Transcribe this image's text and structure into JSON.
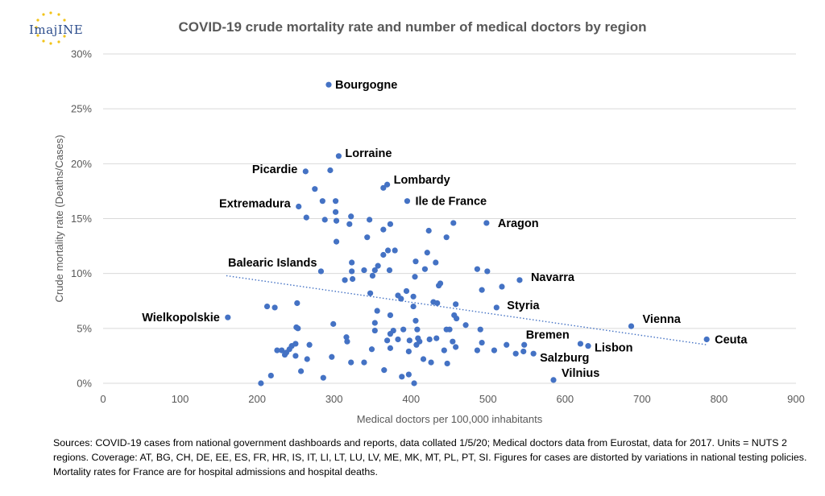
{
  "logo": {
    "text": "ImajINE"
  },
  "chart_data": {
    "type": "scatter",
    "title": "COVID-19 crude mortality rate and number of medical doctors by region",
    "xlabel": "Medical doctors per 100,000 inhabitants",
    "ylabel": "Crude mortality rate (Deaths/Cases)",
    "xlim": [
      0,
      900
    ],
    "ylim": [
      0,
      30
    ],
    "x_ticks": [
      0,
      100,
      200,
      300,
      400,
      500,
      600,
      700,
      800,
      900
    ],
    "y_ticks": [
      0,
      5,
      10,
      15,
      20,
      25,
      30
    ],
    "y_tick_labels": [
      "0%",
      "5%",
      "10%",
      "15%",
      "20%",
      "25%",
      "30%"
    ],
    "grid": "horizontal",
    "point_color": "#4472c4",
    "trendline": {
      "type": "linear",
      "style": "dotted",
      "color": "#4472c4",
      "from": [
        160,
        9.8
      ],
      "to": [
        785,
        3.5
      ]
    },
    "labeled_points": [
      {
        "label": "Bourgogne",
        "x": 293,
        "y": 27.2
      },
      {
        "label": "Lorraine",
        "x": 306,
        "y": 20.7
      },
      {
        "label": "Picardie",
        "x": 263,
        "y": 19.3
      },
      {
        "label": "Lombardy",
        "x": 369,
        "y": 18.1
      },
      {
        "label": "Extremadura",
        "x": 254,
        "y": 16.1
      },
      {
        "label": "Ile de France",
        "x": 395,
        "y": 16.6
      },
      {
        "label": "Aragon",
        "x": 498,
        "y": 14.6
      },
      {
        "label": "Balearic Islands",
        "x": 283,
        "y": 10.2
      },
      {
        "label": "Navarra",
        "x": 541,
        "y": 9.4
      },
      {
        "label": "Styria",
        "x": 511,
        "y": 6.9
      },
      {
        "label": "Wielkopolskie",
        "x": 162,
        "y": 6.0
      },
      {
        "label": "Vienna",
        "x": 686,
        "y": 5.2
      },
      {
        "label": "Ceuta",
        "x": 784,
        "y": 4.0
      },
      {
        "label": "Bremen",
        "x": 547,
        "y": 3.5
      },
      {
        "label": "Lisbon",
        "x": 630,
        "y": 3.4
      },
      {
        "label": "Salzburg",
        "x": 559,
        "y": 2.7
      },
      {
        "label": "Vilnius",
        "x": 585,
        "y": 0.3
      }
    ],
    "points": [
      [
        293,
        27.2
      ],
      [
        306,
        20.7
      ],
      [
        263,
        19.3
      ],
      [
        295,
        19.4
      ],
      [
        369,
        18.1
      ],
      [
        364,
        17.8
      ],
      [
        275,
        17.7
      ],
      [
        254,
        16.1
      ],
      [
        285,
        16.6
      ],
      [
        302,
        16.6
      ],
      [
        395,
        16.6
      ],
      [
        302,
        15.6
      ],
      [
        322,
        15.2
      ],
      [
        264,
        15.1
      ],
      [
        288,
        14.9
      ],
      [
        303,
        14.8
      ],
      [
        346,
        14.9
      ],
      [
        320,
        14.5
      ],
      [
        373,
        14.5
      ],
      [
        455,
        14.6
      ],
      [
        498,
        14.6
      ],
      [
        364,
        14.0
      ],
      [
        423,
        13.9
      ],
      [
        343,
        13.3
      ],
      [
        446,
        13.3
      ],
      [
        303,
        12.9
      ],
      [
        370,
        12.1
      ],
      [
        379,
        12.1
      ],
      [
        421,
        11.9
      ],
      [
        364,
        11.7
      ],
      [
        323,
        11.0
      ],
      [
        406,
        11.1
      ],
      [
        432,
        11.0
      ],
      [
        357,
        10.7
      ],
      [
        339,
        10.3
      ],
      [
        353,
        10.3
      ],
      [
        372,
        10.3
      ],
      [
        418,
        10.4
      ],
      [
        323,
        10.2
      ],
      [
        283,
        10.2
      ],
      [
        486,
        10.4
      ],
      [
        499,
        10.2
      ],
      [
        405,
        9.7
      ],
      [
        314,
        9.4
      ],
      [
        324,
        9.5
      ],
      [
        350,
        9.8
      ],
      [
        438,
        9.1
      ],
      [
        436,
        8.9
      ],
      [
        518,
        8.8
      ],
      [
        541,
        9.4
      ],
      [
        492,
        8.5
      ],
      [
        347,
        8.2
      ],
      [
        394,
        8.4
      ],
      [
        383,
        8.0
      ],
      [
        387,
        7.7
      ],
      [
        403,
        7.9
      ],
      [
        429,
        7.4
      ],
      [
        434,
        7.3
      ],
      [
        458,
        7.2
      ],
      [
        511,
        6.9
      ],
      [
        252,
        7.3
      ],
      [
        213,
        7.0
      ],
      [
        223,
        6.9
      ],
      [
        403,
        7.0
      ],
      [
        356,
        6.6
      ],
      [
        162,
        6.0
      ],
      [
        373,
        6.2
      ],
      [
        456,
        6.2
      ],
      [
        459,
        5.9
      ],
      [
        406,
        5.7
      ],
      [
        353,
        5.5
      ],
      [
        299,
        5.4
      ],
      [
        686,
        5.2
      ],
      [
        471,
        5.3
      ],
      [
        251,
        5.1
      ],
      [
        253,
        5.0
      ],
      [
        353,
        4.8
      ],
      [
        377,
        4.8
      ],
      [
        373,
        4.5
      ],
      [
        390,
        4.9
      ],
      [
        408,
        4.9
      ],
      [
        446,
        4.9
      ],
      [
        450,
        4.9
      ],
      [
        490,
        4.9
      ],
      [
        316,
        4.2
      ],
      [
        383,
        4.0
      ],
      [
        409,
        4.1
      ],
      [
        433,
        4.1
      ],
      [
        424,
        4.0
      ],
      [
        784,
        4.0
      ],
      [
        317,
        3.8
      ],
      [
        369,
        3.9
      ],
      [
        398,
        3.9
      ],
      [
        411,
        3.8
      ],
      [
        454,
        3.8
      ],
      [
        492,
        3.7
      ],
      [
        407,
        3.5
      ],
      [
        524,
        3.5
      ],
      [
        547,
        3.5
      ],
      [
        620,
        3.6
      ],
      [
        630,
        3.4
      ],
      [
        250,
        3.6
      ],
      [
        245,
        3.4
      ],
      [
        232,
        3.0
      ],
      [
        242,
        3.1
      ],
      [
        226,
        3.0
      ],
      [
        268,
        3.5
      ],
      [
        349,
        3.1
      ],
      [
        373,
        3.2
      ],
      [
        397,
        2.9
      ],
      [
        443,
        3.0
      ],
      [
        458,
        3.3
      ],
      [
        486,
        3.0
      ],
      [
        508,
        3.0
      ],
      [
        536,
        2.7
      ],
      [
        546,
        2.9
      ],
      [
        559,
        2.7
      ],
      [
        238,
        2.8
      ],
      [
        236,
        2.6
      ],
      [
        250,
        2.5
      ],
      [
        265,
        2.2
      ],
      [
        297,
        2.4
      ],
      [
        322,
        1.9
      ],
      [
        339,
        1.9
      ],
      [
        416,
        2.2
      ],
      [
        426,
        1.9
      ],
      [
        447,
        1.8
      ],
      [
        257,
        1.1
      ],
      [
        218,
        0.7
      ],
      [
        286,
        0.5
      ],
      [
        365,
        1.2
      ],
      [
        388,
        0.6
      ],
      [
        397,
        0.8
      ],
      [
        404,
        0.0
      ],
      [
        205,
        0.0
      ],
      [
        585,
        0.3
      ]
    ]
  },
  "footnote": "Sources: COVID-19 cases from national government dashboards and reports, data collated 1/5/20; Medical doctors data from Eurostat, data for 2017. Units = NUTS 2 regions. Coverage: AT, BG, CH, DE, EE, ES, FR, HR, IS, IT, LI, LT, LU, LV, ME, MK, MT, PL, PT, SI. Figures for cases are distorted by variations in national testing policies. Mortality rates for France are for hospital admissions and hospital deaths."
}
